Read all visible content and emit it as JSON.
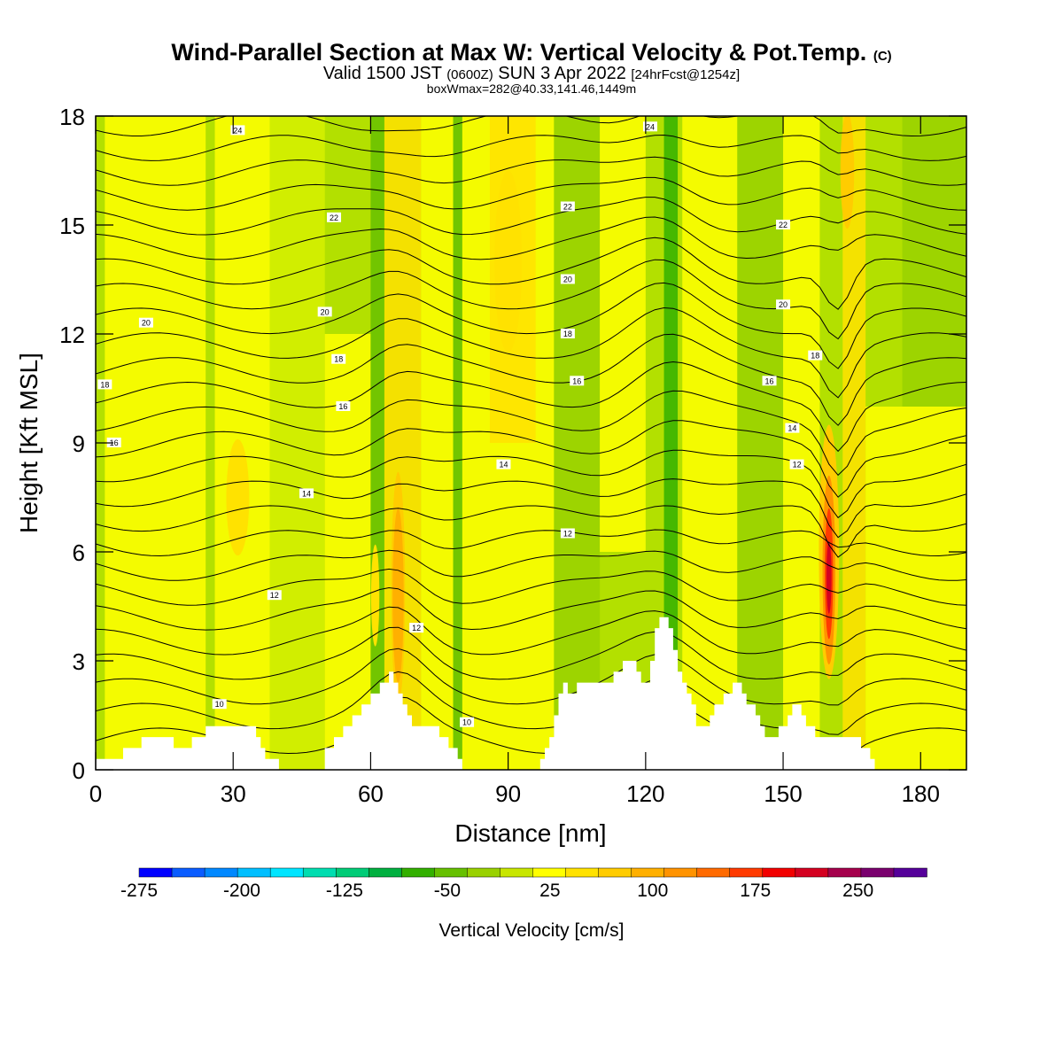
{
  "title": {
    "main": "Wind-Parallel Section at Max W: Vertical Velocity & Pot.Temp.",
    "main_mark": "(C)",
    "valid_prefix": "Valid 1500 JST",
    "valid_z": "(0600Z)",
    "valid_date": "SUN 3 Apr 2022",
    "valid_fcst": "[24hrFcst@1254z]",
    "box": "boxWmax=282@40.33,141.46,1449m"
  },
  "chart_data": {
    "type": "heatmap",
    "xlabel": "Distance [nm]",
    "ylabel": "Height [Kft MSL]",
    "xlim": [
      0,
      190
    ],
    "ylim": [
      0,
      18
    ],
    "x_ticks": [
      0,
      30,
      60,
      90,
      120,
      150,
      180
    ],
    "y_ticks": [
      0,
      3,
      6,
      9,
      12,
      15,
      18
    ],
    "colorbar": {
      "label": "Vertical Velocity [cm/s]",
      "min": -275,
      "max": 300,
      "step": 25,
      "tick_values": [
        -275,
        -200,
        -125,
        -50,
        25,
        100,
        175,
        250
      ],
      "colors": [
        "#0000ff",
        "#0a5cff",
        "#0088ff",
        "#00bfff",
        "#00e5ff",
        "#00ddb0",
        "#00cc77",
        "#00b040",
        "#33b000",
        "#66c000",
        "#99d100",
        "#c8e600",
        "#ffff00",
        "#ffe200",
        "#ffcc00",
        "#ffb000",
        "#ff9300",
        "#ff6a00",
        "#ff3a00",
        "#f20000",
        "#d40020",
        "#a5004c",
        "#7a006e",
        "#55009a"
      ]
    },
    "max_w": {
      "value": 282,
      "units": "cm/s",
      "lat": 40.33,
      "lon": 141.46,
      "height_m": 1449,
      "distance_nm": 160
    },
    "terrain_kft": [
      [
        0,
        0.3
      ],
      [
        6,
        0.3
      ],
      [
        6,
        0.6
      ],
      [
        10,
        0.6
      ],
      [
        10,
        0.9
      ],
      [
        17,
        0.9
      ],
      [
        17,
        0.6
      ],
      [
        21,
        0.6
      ],
      [
        21,
        0.9
      ],
      [
        24,
        0.9
      ],
      [
        24,
        1.2
      ],
      [
        35,
        1.2
      ],
      [
        35,
        0.9
      ],
      [
        36,
        0.9
      ],
      [
        36,
        0.6
      ],
      [
        37,
        0.6
      ],
      [
        37,
        0.3
      ],
      [
        40,
        0.3
      ],
      [
        40,
        0
      ],
      [
        50,
        0
      ],
      [
        50,
        0.6
      ],
      [
        52,
        0.6
      ],
      [
        52,
        0.9
      ],
      [
        54,
        0.9
      ],
      [
        54,
        1.2
      ],
      [
        56,
        1.2
      ],
      [
        56,
        1.5
      ],
      [
        58,
        1.5
      ],
      [
        58,
        1.8
      ],
      [
        60,
        1.8
      ],
      [
        60,
        2.1
      ],
      [
        62,
        2.1
      ],
      [
        62,
        2.4
      ],
      [
        64,
        2.4
      ],
      [
        64,
        2.7
      ],
      [
        65,
        2.7
      ],
      [
        65,
        2.4
      ],
      [
        66,
        2.4
      ],
      [
        66,
        2.1
      ],
      [
        67,
        2.1
      ],
      [
        67,
        1.8
      ],
      [
        68,
        1.8
      ],
      [
        68,
        1.5
      ],
      [
        69,
        1.5
      ],
      [
        69,
        1.2
      ],
      [
        75,
        1.2
      ],
      [
        75,
        0.9
      ],
      [
        77,
        0.9
      ],
      [
        77,
        0.6
      ],
      [
        79,
        0.6
      ],
      [
        79,
        0.3
      ],
      [
        80,
        0.3
      ],
      [
        80,
        0
      ],
      [
        97,
        0
      ],
      [
        97,
        0.3
      ],
      [
        98,
        0.3
      ],
      [
        98,
        0.6
      ],
      [
        99,
        0.6
      ],
      [
        99,
        0.9
      ],
      [
        100,
        0.9
      ],
      [
        100,
        1.5
      ],
      [
        101,
        1.5
      ],
      [
        101,
        2.1
      ],
      [
        102,
        2.1
      ],
      [
        102,
        2.4
      ],
      [
        103,
        2.4
      ],
      [
        103,
        2.1
      ],
      [
        105,
        2.1
      ],
      [
        105,
        2.4
      ],
      [
        113,
        2.4
      ],
      [
        113,
        2.7
      ],
      [
        115,
        2.7
      ],
      [
        115,
        3.0
      ],
      [
        118,
        3.0
      ],
      [
        118,
        2.7
      ],
      [
        119,
        2.7
      ],
      [
        119,
        2.4
      ],
      [
        121,
        2.4
      ],
      [
        121,
        3.0
      ],
      [
        122,
        3.0
      ],
      [
        122,
        3.9
      ],
      [
        123,
        3.9
      ],
      [
        123,
        4.2
      ],
      [
        125,
        4.2
      ],
      [
        125,
        3.9
      ],
      [
        126,
        3.9
      ],
      [
        126,
        3.3
      ],
      [
        127,
        3.3
      ],
      [
        127,
        2.7
      ],
      [
        128,
        2.7
      ],
      [
        128,
        2.4
      ],
      [
        129,
        2.4
      ],
      [
        129,
        2.1
      ],
      [
        130,
        2.1
      ],
      [
        130,
        1.8
      ],
      [
        131,
        1.8
      ],
      [
        131,
        1.2
      ],
      [
        134,
        1.2
      ],
      [
        134,
        1.5
      ],
      [
        135,
        1.5
      ],
      [
        135,
        1.8
      ],
      [
        137,
        1.8
      ],
      [
        137,
        2.1
      ],
      [
        139,
        2.1
      ],
      [
        139,
        2.4
      ],
      [
        141,
        2.4
      ],
      [
        141,
        2.1
      ],
      [
        142,
        2.1
      ],
      [
        142,
        1.8
      ],
      [
        144,
        1.8
      ],
      [
        144,
        1.5
      ],
      [
        145,
        1.5
      ],
      [
        145,
        1.2
      ],
      [
        146,
        1.2
      ],
      [
        146,
        0.9
      ],
      [
        149,
        0.9
      ],
      [
        149,
        1.2
      ],
      [
        151,
        1.2
      ],
      [
        151,
        1.5
      ],
      [
        152,
        1.5
      ],
      [
        152,
        1.8
      ],
      [
        154,
        1.8
      ],
      [
        154,
        1.5
      ],
      [
        155,
        1.5
      ],
      [
        155,
        1.2
      ],
      [
        157,
        1.2
      ],
      [
        157,
        0.9
      ],
      [
        167,
        0.9
      ],
      [
        167,
        0.6
      ],
      [
        169,
        0.6
      ],
      [
        169,
        0.3
      ],
      [
        170,
        0.3
      ],
      [
        170,
        0
      ],
      [
        190,
        0
      ]
    ],
    "contour_labels": [
      {
        "x": 31,
        "y": 17.6,
        "text": "24"
      },
      {
        "x": 121,
        "y": 17.7,
        "text": "24"
      },
      {
        "x": 52,
        "y": 15.2,
        "text": "22"
      },
      {
        "x": 103,
        "y": 15.5,
        "text": "22"
      },
      {
        "x": 150,
        "y": 15.0,
        "text": "22"
      },
      {
        "x": 11,
        "y": 12.3,
        "text": "20"
      },
      {
        "x": 50,
        "y": 12.6,
        "text": "20"
      },
      {
        "x": 103,
        "y": 13.5,
        "text": "20"
      },
      {
        "x": 150,
        "y": 12.8,
        "text": "20"
      },
      {
        "x": 53,
        "y": 11.3,
        "text": "18"
      },
      {
        "x": 103,
        "y": 12.0,
        "text": "18"
      },
      {
        "x": 157,
        "y": 11.4,
        "text": "18"
      },
      {
        "x": 2,
        "y": 10.6,
        "text": "18"
      },
      {
        "x": 54,
        "y": 10.0,
        "text": "16"
      },
      {
        "x": 105,
        "y": 10.7,
        "text": "16"
      },
      {
        "x": 147,
        "y": 10.7,
        "text": "16"
      },
      {
        "x": 4,
        "y": 9.0,
        "text": "16"
      },
      {
        "x": 46,
        "y": 7.6,
        "text": "14"
      },
      {
        "x": 89,
        "y": 8.4,
        "text": "14"
      },
      {
        "x": 152,
        "y": 9.4,
        "text": "14"
      },
      {
        "x": 103,
        "y": 6.5,
        "text": "12"
      },
      {
        "x": 153,
        "y": 8.4,
        "text": "12"
      },
      {
        "x": 39,
        "y": 4.8,
        "text": "12"
      },
      {
        "x": 70,
        "y": 3.9,
        "text": "12"
      },
      {
        "x": 27,
        "y": 1.8,
        "text": "10"
      },
      {
        "x": 81,
        "y": 1.3,
        "text": "10"
      }
    ]
  }
}
